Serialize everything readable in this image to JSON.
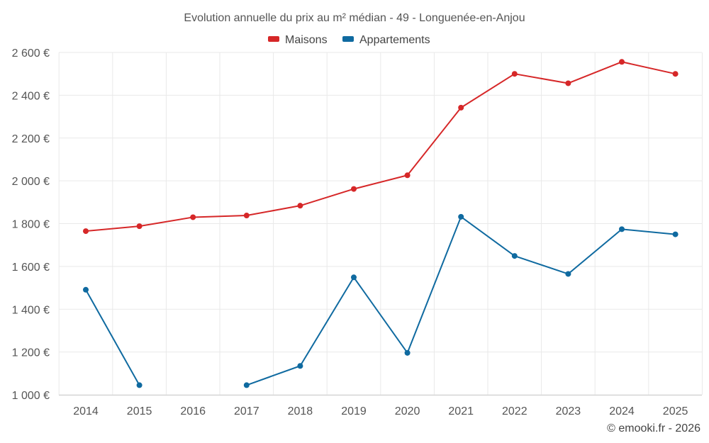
{
  "chart_data": {
    "type": "line",
    "title": "Evolution annuelle du prix au m² médian - 49 - Longuenée-en-Anjou",
    "categories": [
      "2014",
      "2015",
      "2016",
      "2017",
      "2018",
      "2019",
      "2020",
      "2021",
      "2022",
      "2023",
      "2024",
      "2025"
    ],
    "series": [
      {
        "name": "Maisons",
        "color": "#d62728",
        "values": [
          1765,
          1788,
          1830,
          1838,
          1884,
          1962,
          2026,
          2342,
          2500,
          2456,
          2556,
          2500
        ]
      },
      {
        "name": "Appartements",
        "color": "#0f6aa0",
        "values": [
          1491,
          1045,
          null,
          1045,
          1135,
          1549,
          1196,
          1832,
          1649,
          1565,
          1774,
          1750
        ]
      }
    ],
    "ylim": [
      1000,
      2600
    ],
    "yticks": [
      1000,
      1200,
      1400,
      1600,
      1800,
      2000,
      2200,
      2400,
      2600
    ],
    "ytick_labels": [
      "1 000 €",
      "1 200 €",
      "1 400 €",
      "1 600 €",
      "1 800 €",
      "2 000 €",
      "2 200 €",
      "2 400 €",
      "2 600 €"
    ],
    "legend_position": "top-center",
    "grid": true,
    "credit": "© emooki.fr - 2026"
  }
}
